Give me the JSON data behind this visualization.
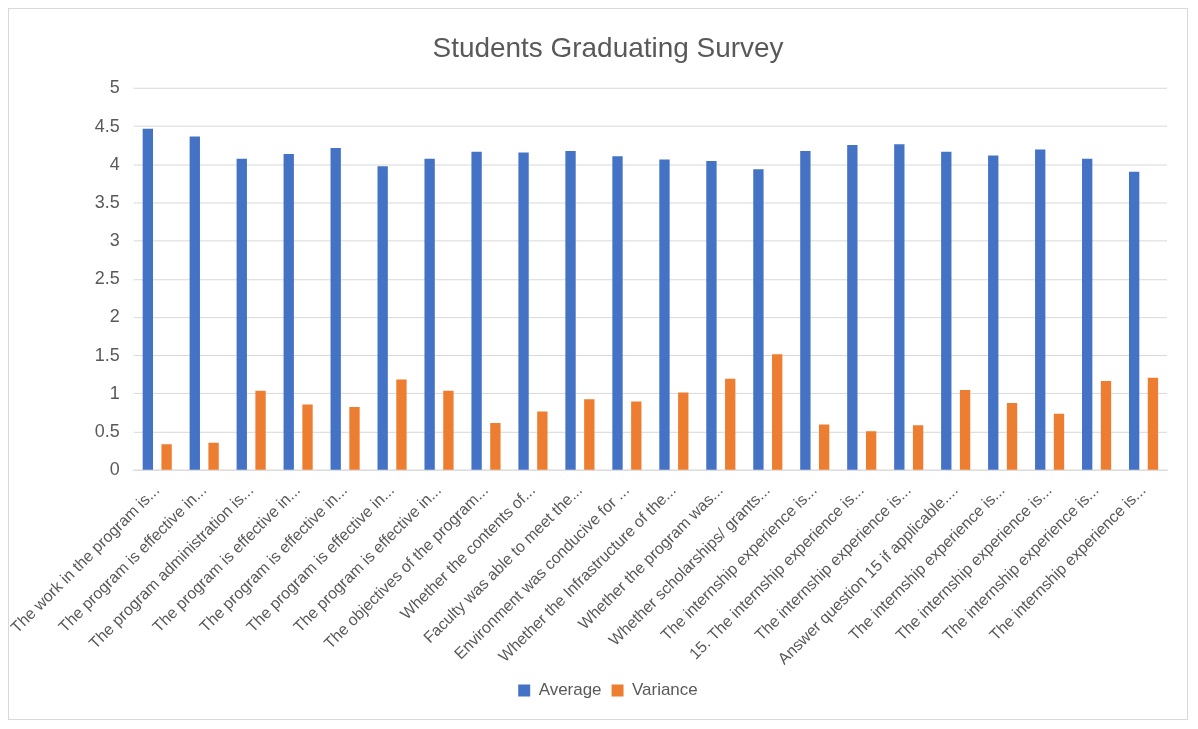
{
  "chart_data": {
    "type": "bar",
    "title": "Students Graduating Survey",
    "categories": [
      "The work in the program is...",
      "The program is effective in...",
      "The program administration is...",
      "The program is effective in...",
      "The program is effective in...",
      "The program is effective in...",
      "The program is effective in...",
      "The objectives of the program...",
      "Whether the contents of...",
      "Faculty was able to meet the...",
      "Environment was conducive for ...",
      "Whether the Infrastructure of the...",
      "Whether the program was...",
      "Whether scholarships/ grants...",
      "The internship experience is...",
      "15. The internship experience is...",
      "The internship experience is...",
      "Answer question 15 if applicable....",
      "The internship experience is...",
      "The internship experience is...",
      "The internship experience is...",
      "The internship experience is..."
    ],
    "series": [
      {
        "name": "Average",
        "color": "#4472c4",
        "values": [
          4.47,
          4.37,
          4.08,
          4.14,
          4.22,
          3.98,
          4.08,
          4.17,
          4.16,
          4.18,
          4.11,
          4.07,
          4.05,
          3.94,
          4.18,
          4.26,
          4.27,
          4.17,
          4.12,
          4.2,
          4.08,
          3.91
        ]
      },
      {
        "name": "Variance",
        "color": "#ed7d31",
        "values": [
          0.34,
          0.36,
          1.04,
          0.86,
          0.83,
          1.19,
          1.04,
          0.62,
          0.77,
          0.93,
          0.9,
          1.02,
          1.2,
          1.52,
          0.6,
          0.51,
          0.59,
          1.05,
          0.88,
          0.74,
          1.17,
          1.21
        ]
      }
    ],
    "ylim": [
      0,
      5
    ],
    "yticks": [
      0,
      0.5,
      1,
      1.5,
      2,
      2.5,
      3,
      3.5,
      4,
      4.5,
      5
    ],
    "grid": "y",
    "legend": "bottom"
  }
}
